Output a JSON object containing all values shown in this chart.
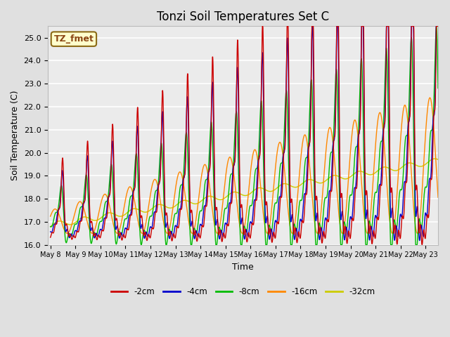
{
  "title": "Tonzi Soil Temperatures Set C",
  "xlabel": "Time",
  "ylabel": "Soil Temperature (C)",
  "ylim": [
    16.0,
    25.5
  ],
  "xlim": [
    0,
    15.5
  ],
  "annotation_text": "TZ_fmet",
  "annotation_color": "#8B4513",
  "annotation_bg": "#FFFFCC",
  "annotation_border": "#8B6914",
  "xtick_labels": [
    "May 8",
    "May 9",
    "May 10",
    "May 11",
    "May 12",
    "May 13",
    "May 14",
    "May 15",
    "May 16",
    "May 17",
    "May 18",
    "May 19",
    "May 20",
    "May 21",
    "May 22",
    "May 23"
  ],
  "legend_labels": [
    "-2cm",
    "-4cm",
    "-8cm",
    "-16cm",
    "-32cm"
  ],
  "line_colors": [
    "#CC0000",
    "#0000CC",
    "#00BB00",
    "#FF8800",
    "#CCCC00"
  ],
  "bg_color": "#E0E0E0",
  "plot_bg_color": "#EBEBEB",
  "grid_color": "#FFFFFF",
  "title_fontsize": 12
}
